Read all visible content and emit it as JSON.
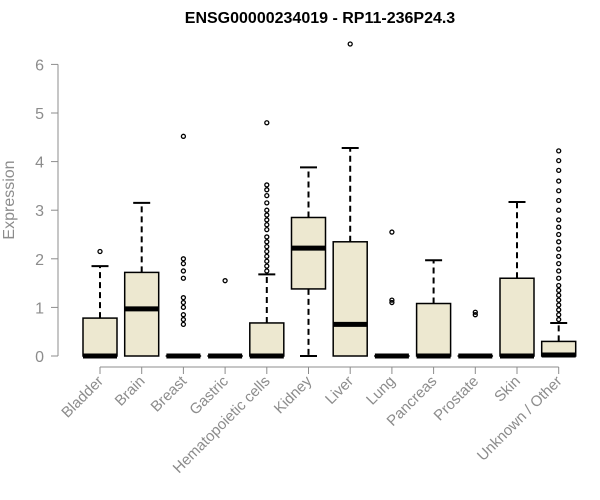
{
  "chart_data": {
    "type": "box",
    "title": "ENSG00000234019 - RP11-236P24.3",
    "xlabel": "",
    "ylabel": "Expression",
    "ylim": [
      0,
      6
    ],
    "yticks": [
      0,
      1,
      2,
      3,
      4,
      5,
      6
    ],
    "grid": false,
    "colors": {
      "box_fill": "#ede8d0",
      "stroke": "#000000",
      "axis_text": "#8c8c8c",
      "axis_line": "#8c8c8c"
    },
    "categories": [
      "Bladder",
      "Brain",
      "Breast",
      "Gastric",
      "Hematopoietic cells",
      "Kidney",
      "Liver",
      "Lung",
      "Pancreas",
      "Prostate",
      "Skin",
      "Unknown / Other"
    ],
    "boxes": [
      {
        "category": "Bladder",
        "whisker_low": 0,
        "q1": 0,
        "median": 0,
        "q3": 0.78,
        "whisker_high": 1.85,
        "outliers": [
          2.15
        ]
      },
      {
        "category": "Brain",
        "whisker_low": 0,
        "q1": 0,
        "median": 0.97,
        "q3": 1.72,
        "whisker_high": 3.15,
        "outliers": []
      },
      {
        "category": "Breast",
        "whisker_low": 0,
        "q1": 0,
        "median": 0,
        "q3": 0,
        "whisker_high": 0,
        "outliers": [
          0.65,
          0.75,
          0.85,
          1.0,
          1.1,
          1.2,
          1.6,
          1.75,
          1.9,
          2.0,
          4.52
        ]
      },
      {
        "category": "Gastric",
        "whisker_low": 0,
        "q1": 0,
        "median": 0,
        "q3": 0,
        "whisker_high": 0,
        "outliers": [
          1.55
        ]
      },
      {
        "category": "Hematopoietic cells",
        "whisker_low": 0,
        "q1": 0,
        "median": 0,
        "q3": 0.68,
        "whisker_high": 1.68,
        "outliers": [
          1.75,
          1.85,
          1.95,
          2.05,
          2.15,
          2.25,
          2.35,
          2.45,
          2.6,
          2.7,
          2.8,
          2.9,
          3.0,
          3.15,
          3.3,
          3.42,
          3.52,
          4.8
        ]
      },
      {
        "category": "Kidney",
        "whisker_low": 0,
        "q1": 1.38,
        "median": 2.22,
        "q3": 2.85,
        "whisker_high": 3.88,
        "outliers": []
      },
      {
        "category": "Liver",
        "whisker_low": 0,
        "q1": 0,
        "median": 0.65,
        "q3": 2.35,
        "whisker_high": 4.28,
        "outliers": [
          6.42
        ]
      },
      {
        "category": "Lung",
        "whisker_low": 0,
        "q1": 0,
        "median": 0,
        "q3": 0,
        "whisker_high": 0,
        "outliers": [
          1.1,
          1.15,
          2.55
        ]
      },
      {
        "category": "Pancreas",
        "whisker_low": 0,
        "q1": 0,
        "median": 0,
        "q3": 1.08,
        "whisker_high": 1.97,
        "outliers": []
      },
      {
        "category": "Prostate",
        "whisker_low": 0,
        "q1": 0,
        "median": 0,
        "q3": 0,
        "whisker_high": 0,
        "outliers": [
          0.85,
          0.9
        ]
      },
      {
        "category": "Skin",
        "whisker_low": 0,
        "q1": 0,
        "median": 0,
        "q3": 1.6,
        "whisker_high": 3.17,
        "outliers": []
      },
      {
        "category": "Unknown / Other",
        "whisker_low": 0,
        "q1": 0,
        "median": 0.02,
        "q3": 0.3,
        "whisker_high": 0.68,
        "outliers": [
          0.75,
          0.85,
          0.95,
          1.05,
          1.15,
          1.25,
          1.35,
          1.45,
          1.6,
          1.75,
          1.9,
          2.05,
          2.2,
          2.35,
          2.5,
          2.65,
          2.8,
          3.0,
          3.2,
          3.4,
          3.6,
          3.82,
          4.02,
          4.22
        ]
      }
    ]
  }
}
